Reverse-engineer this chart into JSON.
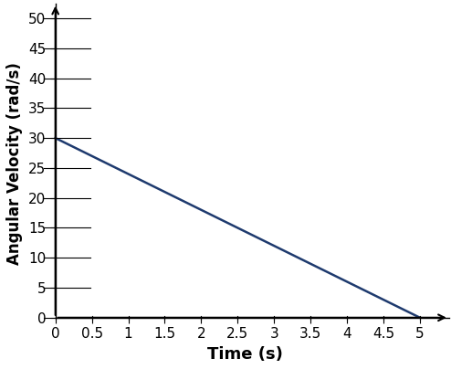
{
  "x": [
    0,
    5
  ],
  "y": [
    30,
    0
  ],
  "xlabel": "Time (s)",
  "ylabel": "Angular Velocity (rad/s)",
  "xlim": [
    -0.05,
    5.25
  ],
  "ylim": [
    -0.5,
    52
  ],
  "xticks": [
    0,
    0.5,
    1,
    1.5,
    2,
    2.5,
    3,
    3.5,
    4,
    4.5,
    5
  ],
  "xticklabels": [
    "0",
    "0.5",
    "1",
    "1.5",
    "2",
    "2.5",
    "3",
    "3.5",
    "4",
    "4.5",
    "5"
  ],
  "yticks": [
    0,
    5,
    10,
    15,
    20,
    25,
    30,
    35,
    40,
    45,
    50
  ],
  "yticklabels": [
    "0",
    "5",
    "10",
    "15",
    "20",
    "25",
    "30",
    "35",
    "40",
    "45",
    "50"
  ],
  "line_color": "#1e3a6e",
  "line_width": 1.8,
  "background_color": "#ffffff",
  "xlabel_fontsize": 13,
  "ylabel_fontsize": 12,
  "tick_fontsize": 11,
  "arrow_xlim": 5.4,
  "arrow_ylim": 52.5
}
